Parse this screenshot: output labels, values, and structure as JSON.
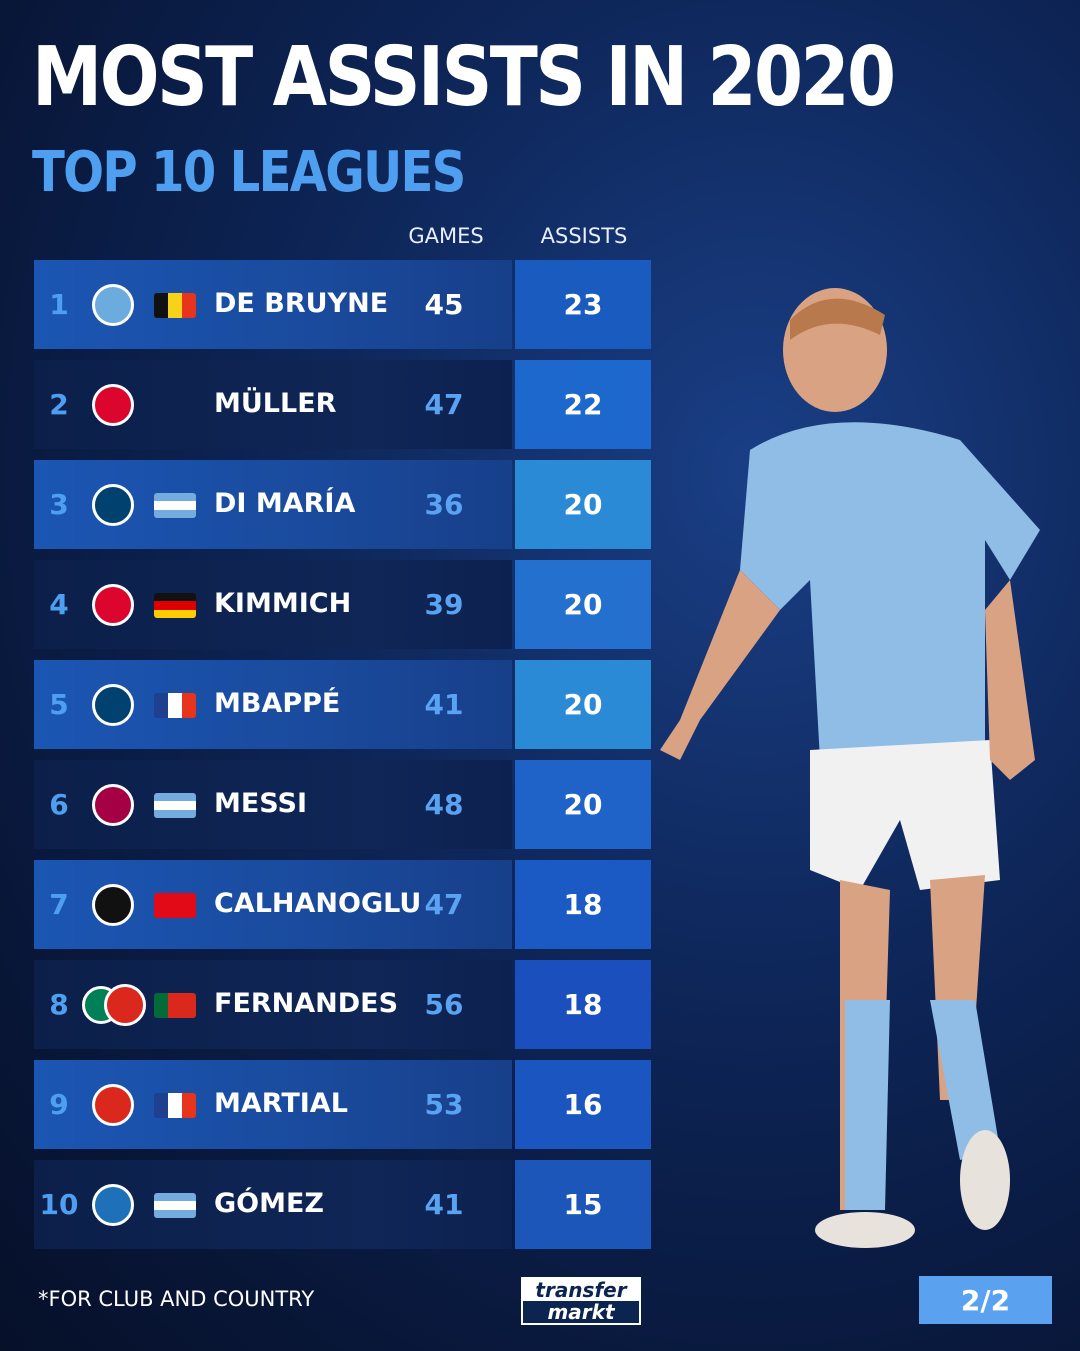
{
  "title": "MOST ASSISTS IN 2020",
  "subtitle": "TOP 10 LEAGUES",
  "footnote": "*FOR CLUB AND COUNTRY",
  "logo": {
    "line1": "transfer",
    "line2": "markt"
  },
  "page_indicator": "2/2",
  "colors": {
    "accent": "#4f9ff0",
    "row_highlight": "#1b56b4",
    "row_dark": "#0c1f4a",
    "background": "#0d2455"
  },
  "chart_data": {
    "type": "table",
    "columns": [
      "GAMES",
      "ASSISTS"
    ],
    "rows": [
      {
        "rank": "1",
        "club": "manchester-city-badge",
        "flag": "belgium",
        "name": "DE BRUYNE",
        "games": "45",
        "assists": "23"
      },
      {
        "rank": "2",
        "club": "bayern-munich-badge",
        "flag": "",
        "name": "MÜLLER",
        "games": "47",
        "assists": "22"
      },
      {
        "rank": "3",
        "club": "psg-badge",
        "flag": "argentina",
        "name": "DI MARÍA",
        "games": "36",
        "assists": "20"
      },
      {
        "rank": "4",
        "club": "bayern-munich-badge",
        "flag": "germany",
        "name": "KIMMICH",
        "games": "39",
        "assists": "20"
      },
      {
        "rank": "5",
        "club": "psg-badge",
        "flag": "france",
        "name": "MBAPPÉ",
        "games": "41",
        "assists": "20"
      },
      {
        "rank": "6",
        "club": "barcelona-badge",
        "flag": "argentina",
        "name": "MESSI",
        "games": "48",
        "assists": "20"
      },
      {
        "rank": "7",
        "club": "ac-milan-badge",
        "flag": "turkey",
        "name": "CALHANOGLU",
        "games": "47",
        "assists": "18"
      },
      {
        "rank": "8",
        "club": "sporting-and-manchester-united-badges",
        "flag": "portugal",
        "name": "FERNANDES",
        "games": "56",
        "assists": "18"
      },
      {
        "rank": "9",
        "club": "manchester-united-badge",
        "flag": "france",
        "name": "MARTIAL",
        "games": "53",
        "assists": "16"
      },
      {
        "rank": "10",
        "club": "atalanta-badge",
        "flag": "argentina",
        "name": "GÓMEZ",
        "games": "41",
        "assists": "15"
      }
    ]
  }
}
